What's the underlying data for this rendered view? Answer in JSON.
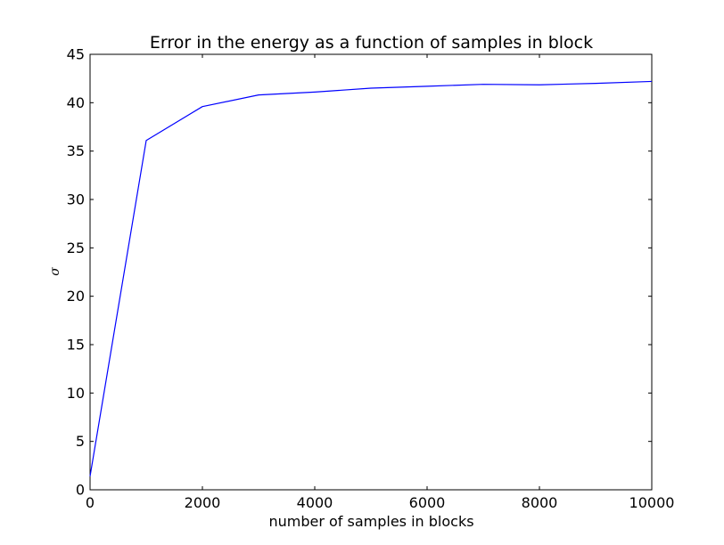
{
  "chart_data": {
    "type": "line",
    "title": "Error in the energy as a function of samples in block",
    "xlabel": "number of samples in blocks",
    "ylabel": "σ",
    "xlim": [
      0,
      10000
    ],
    "ylim": [
      0,
      45
    ],
    "xticks": [
      0,
      2000,
      4000,
      6000,
      8000,
      10000
    ],
    "yticks": [
      0,
      5,
      10,
      15,
      20,
      25,
      30,
      35,
      40,
      45
    ],
    "grid": false,
    "series": [
      {
        "color": "#0000ff",
        "x": [
          0,
          1000,
          2000,
          3000,
          4000,
          5000,
          6000,
          7000,
          8000,
          9000,
          10000
        ],
        "y": [
          1.4,
          36.1,
          39.6,
          40.8,
          41.1,
          41.5,
          41.7,
          41.9,
          41.85,
          42.0,
          42.2
        ]
      }
    ]
  }
}
